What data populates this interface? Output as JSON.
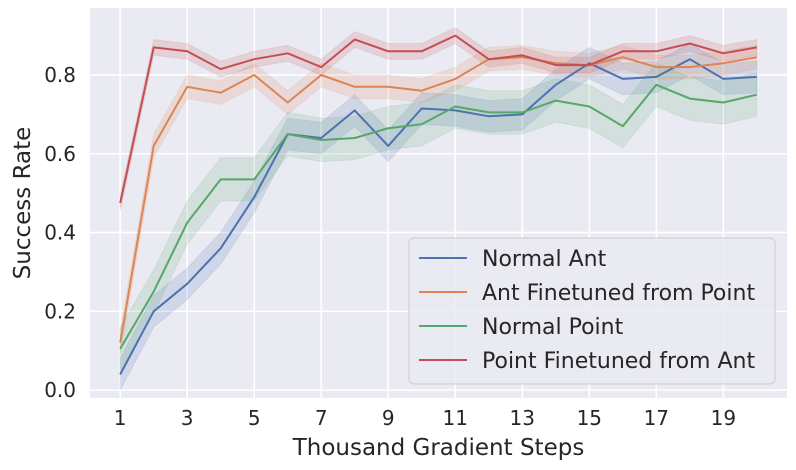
{
  "chart_data": {
    "type": "line",
    "title": "",
    "xlabel": "Thousand Gradient Steps",
    "ylabel": "Success Rate",
    "xlim": [
      0.1,
      20.9
    ],
    "ylim": [
      -0.02,
      0.97
    ],
    "x_ticks": [
      1,
      3,
      5,
      7,
      9,
      11,
      13,
      15,
      17,
      19
    ],
    "y_ticks": [
      0.0,
      0.2,
      0.4,
      0.6,
      0.8
    ],
    "y_tick_labels": [
      "0.0",
      "0.2",
      "0.4",
      "0.6",
      "0.8"
    ],
    "grid": true,
    "legend_position": "lower-right",
    "background": "#eaeaf2",
    "x": [
      1,
      2,
      3,
      4,
      5,
      6,
      7,
      8,
      9,
      10,
      11,
      12,
      13,
      14,
      15,
      16,
      17,
      18,
      19,
      20
    ],
    "series": [
      {
        "name": "Normal Ant",
        "color": "#4c72b0",
        "values": [
          0.04,
          0.2,
          0.27,
          0.36,
          0.49,
          0.65,
          0.64,
          0.71,
          0.62,
          0.715,
          0.71,
          0.695,
          0.7,
          0.775,
          0.83,
          0.79,
          0.795,
          0.84,
          0.79,
          0.795
        ],
        "band": 0.04
      },
      {
        "name": "Ant Finetuned from Point",
        "color": "#dd8452",
        "values": [
          0.12,
          0.62,
          0.77,
          0.755,
          0.8,
          0.73,
          0.8,
          0.77,
          0.77,
          0.76,
          0.79,
          0.84,
          0.845,
          0.83,
          0.825,
          0.845,
          0.82,
          0.82,
          0.83,
          0.845
        ],
        "band": 0.03
      },
      {
        "name": "Normal Point",
        "color": "#55a868",
        "values": [
          0.105,
          0.25,
          0.425,
          0.535,
          0.535,
          0.65,
          0.635,
          0.64,
          0.665,
          0.675,
          0.72,
          0.705,
          0.705,
          0.735,
          0.72,
          0.67,
          0.775,
          0.74,
          0.73,
          0.75
        ],
        "band": 0.055
      },
      {
        "name": "Point Finetuned from Ant",
        "color": "#c44e52",
        "values": [
          0.475,
          0.87,
          0.86,
          0.815,
          0.84,
          0.855,
          0.82,
          0.89,
          0.86,
          0.86,
          0.9,
          0.84,
          0.85,
          0.825,
          0.825,
          0.86,
          0.86,
          0.88,
          0.855,
          0.87
        ],
        "band": 0.02
      }
    ]
  }
}
